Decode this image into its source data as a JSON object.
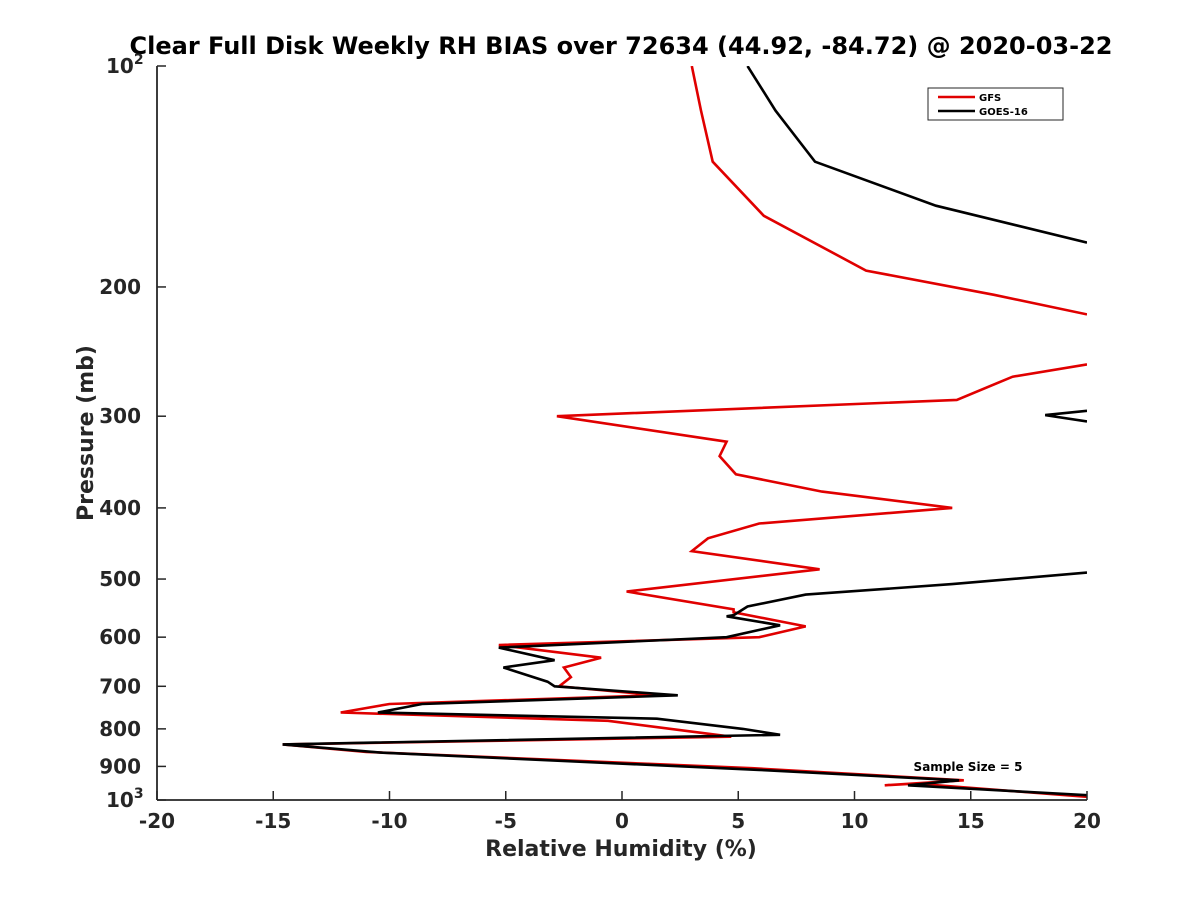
{
  "chart_data": {
    "type": "line",
    "title": "Clear Full Disk Weekly RH BIAS over 72634 (44.92, -84.72) @ 2020-03-22",
    "xlabel": "Relative Humidity (%)",
    "ylabel": "Pressure (mb)",
    "xlim": [
      -20,
      20
    ],
    "ylim": [
      100,
      1000
    ],
    "yscale": "log",
    "y_reversed": true,
    "xticks": [
      {
        "value": -20,
        "label": "-20"
      },
      {
        "value": -15,
        "label": "-15"
      },
      {
        "value": -10,
        "label": "-10"
      },
      {
        "value": -5,
        "label": "-5"
      },
      {
        "value": 0,
        "label": "0"
      },
      {
        "value": 5,
        "label": "5"
      },
      {
        "value": 10,
        "label": "10"
      },
      {
        "value": 15,
        "label": "15"
      },
      {
        "value": 20,
        "label": "20"
      }
    ],
    "yticks": [
      {
        "value": 100,
        "base": "10",
        "exp": "2"
      },
      {
        "value": 200,
        "base": "200",
        "exp": ""
      },
      {
        "value": 300,
        "base": "300",
        "exp": ""
      },
      {
        "value": 400,
        "base": "400",
        "exp": ""
      },
      {
        "value": 500,
        "base": "500",
        "exp": ""
      },
      {
        "value": 600,
        "base": "600",
        "exp": ""
      },
      {
        "value": 700,
        "base": "700",
        "exp": ""
      },
      {
        "value": 800,
        "base": "800",
        "exp": ""
      },
      {
        "value": 900,
        "base": "900",
        "exp": ""
      },
      {
        "value": 1000,
        "base": "10",
        "exp": "3"
      }
    ],
    "legend_position": "top-right",
    "annotation": "Sample Size = 5",
    "series": [
      {
        "name": "GFS",
        "color": "#e00000",
        "segments": [
          [
            [
              3.0,
              100
            ],
            [
              3.4,
              115
            ],
            [
              3.9,
              135
            ],
            [
              6.1,
              160
            ],
            [
              10.5,
              190
            ],
            [
              16.0,
              205
            ],
            [
              20.0,
              218
            ]
          ],
          [
            [
              20.0,
              255
            ],
            [
              16.8,
              265
            ],
            [
              14.4,
              285
            ],
            [
              -2.8,
              300
            ],
            [
              4.5,
              325
            ],
            [
              4.2,
              340
            ],
            [
              4.9,
              360
            ],
            [
              8.6,
              380
            ],
            [
              14.2,
              400
            ],
            [
              5.9,
              420
            ],
            [
              3.7,
              440
            ],
            [
              3.0,
              458
            ],
            [
              8.5,
              485
            ],
            [
              0.2,
              520
            ],
            [
              4.8,
              550
            ],
            [
              4.8,
              555
            ],
            [
              7.9,
              580
            ],
            [
              5.9,
              600
            ],
            [
              -5.3,
              615
            ],
            [
              -0.9,
              640
            ],
            [
              -2.5,
              660
            ],
            [
              -2.2,
              680
            ],
            [
              -2.7,
              700
            ],
            [
              1.5,
              720
            ],
            [
              -10.0,
              740
            ],
            [
              -12.1,
              760
            ],
            [
              -0.6,
              780
            ],
            [
              4.7,
              820
            ],
            [
              -14.6,
              840
            ],
            [
              -11.0,
              860
            ],
            [
              5.6,
              905
            ],
            [
              14.7,
              940
            ],
            [
              11.3,
              955
            ],
            [
              12.6,
              950
            ],
            [
              20.0,
              990
            ]
          ]
        ]
      },
      {
        "name": "GOES-16",
        "color": "#000000",
        "segments": [
          [
            [
              5.4,
              100
            ],
            [
              6.6,
              115
            ],
            [
              8.3,
              135
            ],
            [
              13.5,
              155
            ],
            [
              20.0,
              174
            ]
          ],
          [
            [
              20.0,
              295
            ],
            [
              18.2,
              299
            ],
            [
              20.0,
              305
            ]
          ],
          [
            [
              20.0,
              490
            ],
            [
              14.2,
              508
            ],
            [
              7.9,
              525
            ],
            [
              5.4,
              545
            ],
            [
              4.8,
              560
            ],
            [
              4.5,
              562
            ],
            [
              6.8,
              578
            ],
            [
              4.5,
              600
            ],
            [
              -5.3,
              620
            ],
            [
              -2.9,
              645
            ],
            [
              -5.1,
              660
            ],
            [
              -3.2,
              690
            ],
            [
              -2.9,
              700
            ],
            [
              2.4,
              720
            ],
            [
              -8.6,
              740
            ],
            [
              -10.5,
              760
            ],
            [
              1.5,
              775
            ],
            [
              5.2,
              800
            ],
            [
              6.8,
              815
            ],
            [
              -14.6,
              840
            ],
            [
              -10.3,
              862
            ],
            [
              5.9,
              910
            ],
            [
              14.5,
              940
            ],
            [
              12.3,
              955
            ],
            [
              20.0,
              985
            ]
          ]
        ]
      }
    ]
  }
}
